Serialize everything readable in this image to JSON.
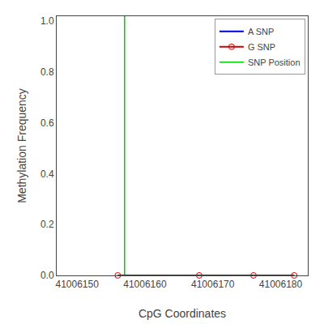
{
  "chart_data": {
    "type": "line",
    "xlabel": "CpG Coordinates",
    "ylabel": "Methylation Frequency",
    "x": [
      41006156,
      41006168,
      41006176,
      41006182
    ],
    "series": [
      {
        "name": "A SNP",
        "color": "#0000cc",
        "marker": "none",
        "values": [
          0.0,
          0.0,
          0.0,
          0.0
        ]
      },
      {
        "name": "G SNP",
        "color": "#cc0000",
        "marker": "circle-open",
        "values": [
          0.0,
          0.0,
          0.0,
          0.0
        ]
      }
    ],
    "vlines": [
      {
        "name": "SNP Position",
        "x": 41006157,
        "color": "#00cc00"
      }
    ],
    "xlim": [
      41006147,
      41006184
    ],
    "ylim": [
      0.0,
      1.02
    ],
    "xticks": [
      41006150,
      41006160,
      41006170,
      41006180
    ],
    "yticks": [
      {
        "value": 0.0,
        "label": "0.0"
      },
      0.2,
      0.4,
      0.6,
      0.8,
      {
        "value": 1.0,
        "label": "1.0"
      }
    ],
    "legend": "upper right",
    "grid": false
  }
}
